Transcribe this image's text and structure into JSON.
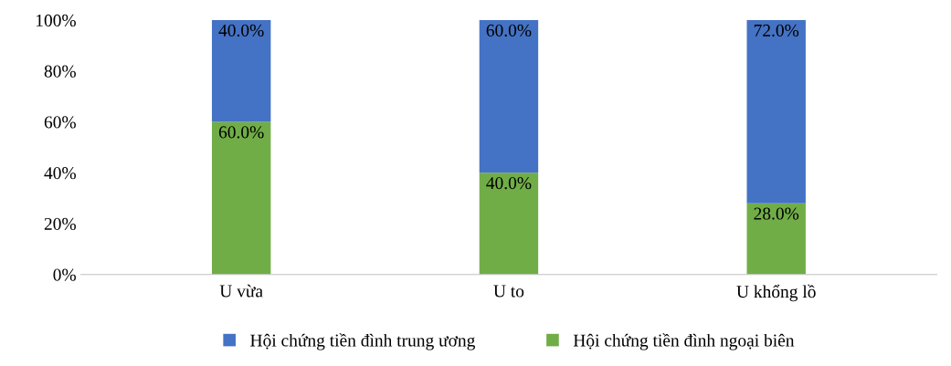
{
  "chart_data": {
    "type": "bar",
    "stacked": true,
    "categories": [
      "U vừa",
      "U to",
      "U khổng lồ"
    ],
    "series": [
      {
        "name": "Hội chứng tiền đình ngoại biên",
        "color": "#70ad47",
        "values": [
          60.0,
          40.0,
          28.0
        ],
        "value_labels": [
          "60.0%",
          "40.0%",
          "28.0%"
        ]
      },
      {
        "name": "Hội chứng tiền đình trung ương",
        "color": "#4472c4",
        "values": [
          40.0,
          60.0,
          72.0
        ],
        "value_labels": [
          "40.0%",
          "60.0%",
          "72.0%"
        ]
      }
    ],
    "ylim": [
      0,
      100
    ],
    "yticks": [
      {
        "value": 0,
        "label": "0%"
      },
      {
        "value": 20,
        "label": "20%"
      },
      {
        "value": 40,
        "label": "40%"
      },
      {
        "value": 60,
        "label": "60%"
      },
      {
        "value": 80,
        "label": "80%"
      },
      {
        "value": 100,
        "label": "100%"
      }
    ],
    "grid": false,
    "legend": "bottom"
  }
}
